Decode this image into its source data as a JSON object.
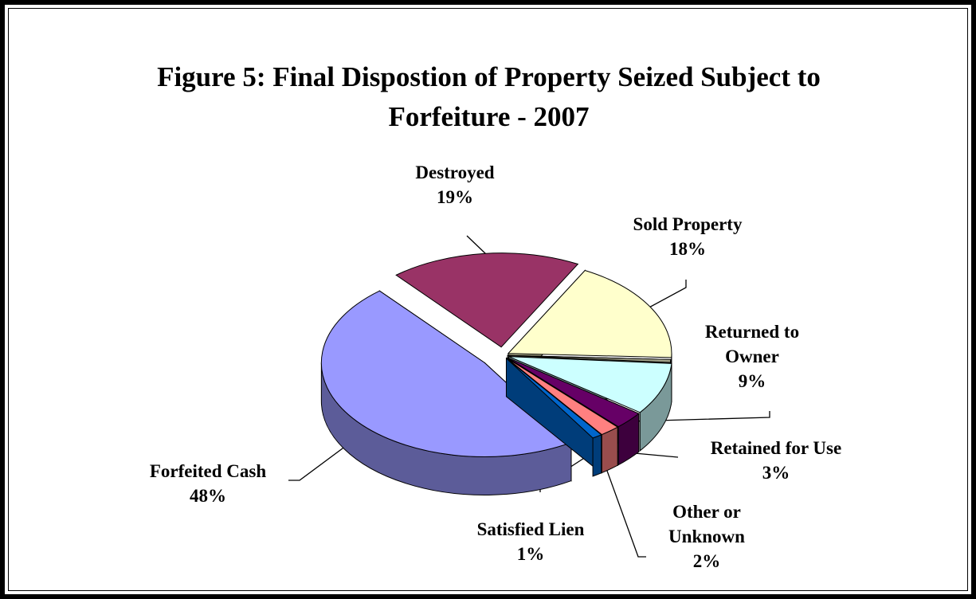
{
  "chart_data": {
    "type": "pie",
    "title": "Figure 5:  Final Dispostion of Property Seized Subject to Forfeiture - 2007",
    "categories": [
      "Sold Property",
      null,
      "Returned to Owner",
      "Retained for Use",
      "Other or Unknown",
      "Satisfied Lien",
      "Forfeited Cash",
      "Destroyed"
    ],
    "values": [
      18,
      0.5,
      9,
      3,
      2,
      1,
      48,
      19
    ],
    "value_labels": [
      "18%",
      null,
      "9%",
      "3%",
      "2%",
      "1%",
      "48%",
      "19%"
    ],
    "colors": [
      "#FFFFCC",
      "#A3A38A",
      "#CCFFFF",
      "#660066",
      "#FF8080",
      "#0066CC",
      "#9999FF",
      "#993366"
    ],
    "three_d": true
  }
}
